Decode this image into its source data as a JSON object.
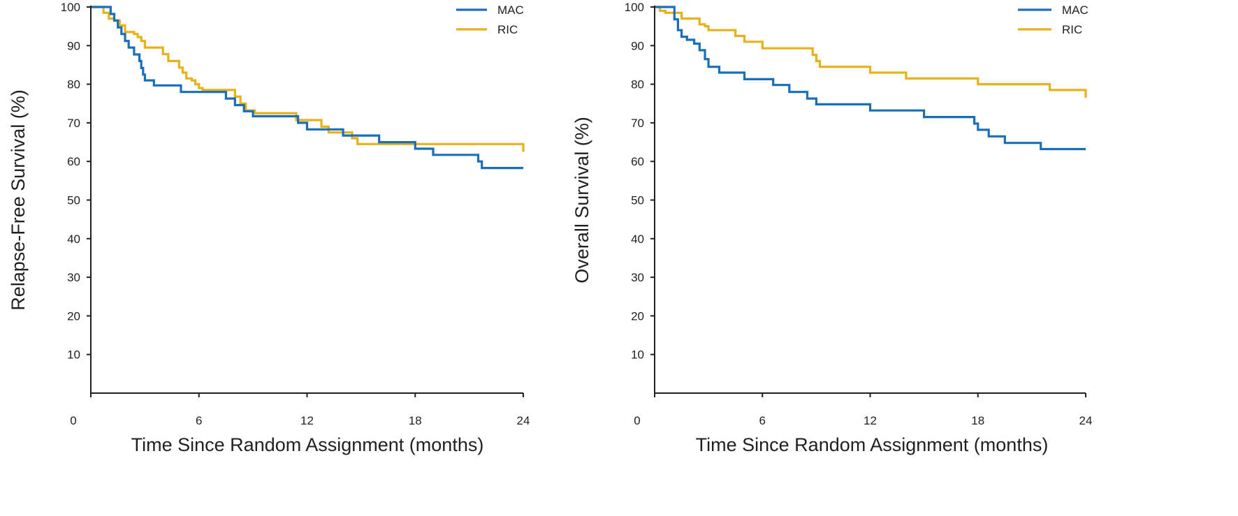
{
  "chart_data": [
    {
      "type": "line",
      "step": true,
      "title": "",
      "xlabel": "Time Since Random Assignment (months)",
      "ylabel": "Relapse-Free Survival (%)",
      "xlim": [
        0,
        24
      ],
      "ylim": [
        0,
        100
      ],
      "x_ticks": [
        "0",
        "6",
        "12",
        "18",
        "24"
      ],
      "x_tick_values": [
        0,
        6,
        12,
        18,
        24
      ],
      "y_ticks": [
        "10",
        "20",
        "30",
        "40",
        "50",
        "60",
        "70",
        "80",
        "90",
        "100"
      ],
      "y_tick_values": [
        10,
        20,
        30,
        40,
        50,
        60,
        70,
        80,
        90,
        100
      ],
      "grid": false,
      "legend_position": "top-right",
      "series": [
        {
          "name": "MAC",
          "color": "#1a6fb9",
          "x": [
            0,
            0.8,
            1.1,
            1.3,
            1.5,
            1.7,
            1.9,
            2.1,
            2.4,
            2.7,
            2.8,
            2.9,
            3.0,
            3.5,
            4.0,
            5.0,
            6.0,
            7.5,
            8.0,
            8.5,
            9.0,
            10.0,
            11.0,
            11.5,
            12.0,
            13.0,
            14.0,
            15.5,
            16.0,
            17.0,
            18.0,
            19.0,
            20.0,
            21.0,
            21.5,
            21.7,
            22.0,
            24.0
          ],
          "y": [
            100,
            100,
            98.2,
            96.5,
            94.7,
            93.0,
            91.2,
            89.5,
            87.7,
            86.0,
            84.2,
            82.5,
            81.0,
            79.7,
            79.7,
            78.0,
            78.0,
            76.3,
            74.6,
            73.0,
            71.7,
            71.7,
            71.7,
            70.0,
            68.3,
            68.3,
            66.7,
            66.7,
            65.0,
            65.0,
            63.3,
            61.7,
            61.7,
            61.7,
            60.0,
            58.3,
            58.3,
            58.3
          ]
        },
        {
          "name": "RIC",
          "color": "#e8b11a",
          "x": [
            0,
            0.4,
            0.7,
            1.0,
            1.3,
            1.6,
            1.9,
            2.2,
            2.4,
            2.6,
            2.8,
            3.0,
            3.2,
            4.0,
            4.3,
            4.6,
            4.9,
            5.1,
            5.3,
            5.6,
            5.8,
            6.0,
            6.2,
            6.6,
            7.0,
            7.5,
            8.0,
            8.3,
            8.6,
            8.9,
            9.1,
            9.4,
            10.0,
            11.0,
            11.4,
            11.7,
            12.0,
            12.8,
            13.2,
            14.0,
            14.5,
            14.8,
            15.0,
            16.0,
            18.0,
            20.0,
            23.9,
            24.0
          ],
          "y": [
            100,
            100,
            98.5,
            97.0,
            96.5,
            95.2,
            93.5,
            93.5,
            93.0,
            92.2,
            91.2,
            89.5,
            89.5,
            87.8,
            86.0,
            86.0,
            84.3,
            83.0,
            81.5,
            81.0,
            80.0,
            79.0,
            78.5,
            78.5,
            78.5,
            78.5,
            76.8,
            75.0,
            73.2,
            73.2,
            72.5,
            72.5,
            72.5,
            72.5,
            70.7,
            70.7,
            70.7,
            69.0,
            67.5,
            67.5,
            66.0,
            64.5,
            64.5,
            64.5,
            64.5,
            64.5,
            64.5,
            62.5
          ]
        }
      ]
    },
    {
      "type": "line",
      "step": true,
      "title": "",
      "xlabel": "Time Since Random Assignment (months)",
      "ylabel": "Overall Survival (%)",
      "xlim": [
        0,
        24
      ],
      "ylim": [
        0,
        100
      ],
      "x_ticks": [
        "0",
        "6",
        "12",
        "18",
        "24"
      ],
      "x_tick_values": [
        0,
        6,
        12,
        18,
        24
      ],
      "y_ticks": [
        "10",
        "20",
        "30",
        "40",
        "50",
        "60",
        "70",
        "80",
        "90",
        "100"
      ],
      "y_tick_values": [
        10,
        20,
        30,
        40,
        50,
        60,
        70,
        80,
        90,
        100
      ],
      "grid": false,
      "legend_position": "top-right",
      "series": [
        {
          "name": "MAC",
          "color": "#1a6fb9",
          "x": [
            0,
            0.9,
            1.1,
            1.3,
            1.5,
            1.8,
            2.2,
            2.5,
            2.8,
            3.0,
            3.3,
            3.6,
            4.0,
            5.0,
            6.0,
            6.6,
            7.5,
            8.0,
            8.5,
            9.0,
            10.0,
            11.0,
            12.0,
            13.0,
            14.0,
            15.0,
            16.0,
            17.0,
            17.8,
            18.0,
            18.3,
            18.6,
            19.0,
            19.5,
            20.0,
            21.0,
            21.5,
            22.0,
            24.0
          ],
          "y": [
            100,
            100,
            96.8,
            94.0,
            92.3,
            91.5,
            90.5,
            88.8,
            86.5,
            84.5,
            84.5,
            83.0,
            83.0,
            81.3,
            81.3,
            79.8,
            78.0,
            78.0,
            76.3,
            74.8,
            74.8,
            74.8,
            73.2,
            73.2,
            73.2,
            71.5,
            71.5,
            71.5,
            69.8,
            68.2,
            68.2,
            66.5,
            66.5,
            64.8,
            64.8,
            64.8,
            63.2,
            63.2,
            63.2
          ]
        },
        {
          "name": "RIC",
          "color": "#e8b11a",
          "x": [
            0,
            0.3,
            0.6,
            1.0,
            1.5,
            2.0,
            2.5,
            2.8,
            3.0,
            3.5,
            4.0,
            4.5,
            5.0,
            5.5,
            6.0,
            7.0,
            8.0,
            8.5,
            8.8,
            9.0,
            9.2,
            10.0,
            11.0,
            11.5,
            12.0,
            13.0,
            14.0,
            16.0,
            17.0,
            18.0,
            19.0,
            20.0,
            21.0,
            21.5,
            22.0,
            23.0,
            23.8,
            24.0
          ],
          "y": [
            100,
            99.0,
            98.5,
            98.5,
            97.0,
            97.0,
            95.5,
            95.0,
            94.0,
            94.0,
            94.0,
            92.5,
            91.0,
            91.0,
            89.3,
            89.3,
            89.3,
            89.3,
            87.6,
            86.0,
            84.5,
            84.5,
            84.5,
            84.5,
            83.0,
            83.0,
            81.5,
            81.5,
            81.5,
            80.0,
            80.0,
            80.0,
            80.0,
            80.0,
            78.5,
            78.5,
            78.5,
            76.5
          ]
        }
      ]
    }
  ],
  "legend": [
    {
      "name": "MAC",
      "color": "#1a6fb9"
    },
    {
      "name": "RIC",
      "color": "#e8b11a"
    }
  ]
}
